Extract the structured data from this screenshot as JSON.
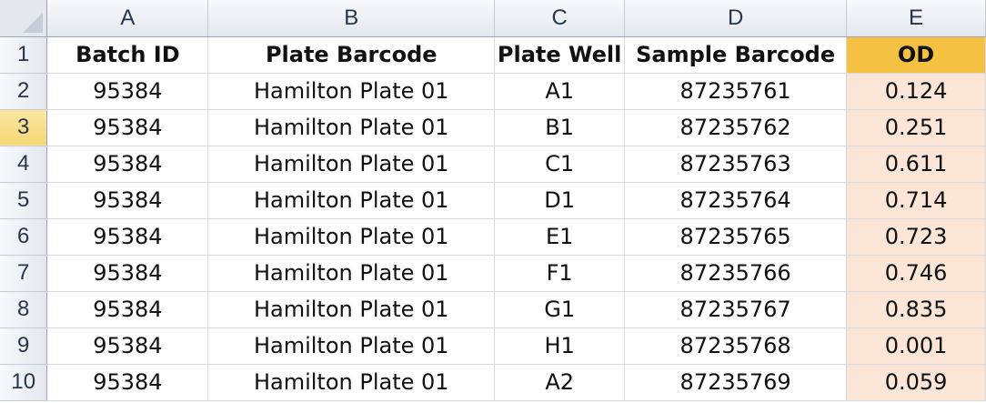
{
  "corner": {
    "icon": "select-all-triangle-icon"
  },
  "columns": [
    "A",
    "B",
    "C",
    "D",
    "E"
  ],
  "row_numbers": [
    "1",
    "2",
    "3",
    "4",
    "5",
    "6",
    "7",
    "8",
    "9",
    "10"
  ],
  "selected_row": "3",
  "colors": {
    "od_header_fill": "#f4c143",
    "od_cell_fill": "#fbe5d6",
    "selected_row_header": "#f6d774"
  },
  "table": {
    "headers": [
      "Batch ID",
      "Plate Barcode",
      "Plate Well",
      "Sample Barcode",
      "OD"
    ],
    "rows": [
      [
        "95384",
        "Hamilton Plate 01",
        "A1",
        "87235761",
        "0.124"
      ],
      [
        "95384",
        "Hamilton Plate 01",
        "B1",
        "87235762",
        "0.251"
      ],
      [
        "95384",
        "Hamilton Plate 01",
        "C1",
        "87235763",
        "0.611"
      ],
      [
        "95384",
        "Hamilton Plate 01",
        "D1",
        "87235764",
        "0.714"
      ],
      [
        "95384",
        "Hamilton Plate 01",
        "E1",
        "87235765",
        "0.723"
      ],
      [
        "95384",
        "Hamilton Plate 01",
        "F1",
        "87235766",
        "0.746"
      ],
      [
        "95384",
        "Hamilton Plate 01",
        "G1",
        "87235767",
        "0.835"
      ],
      [
        "95384",
        "Hamilton Plate 01",
        "H1",
        "87235768",
        "0.001"
      ],
      [
        "95384",
        "Hamilton Plate 01",
        "A2",
        "87235769",
        "0.059"
      ]
    ]
  }
}
